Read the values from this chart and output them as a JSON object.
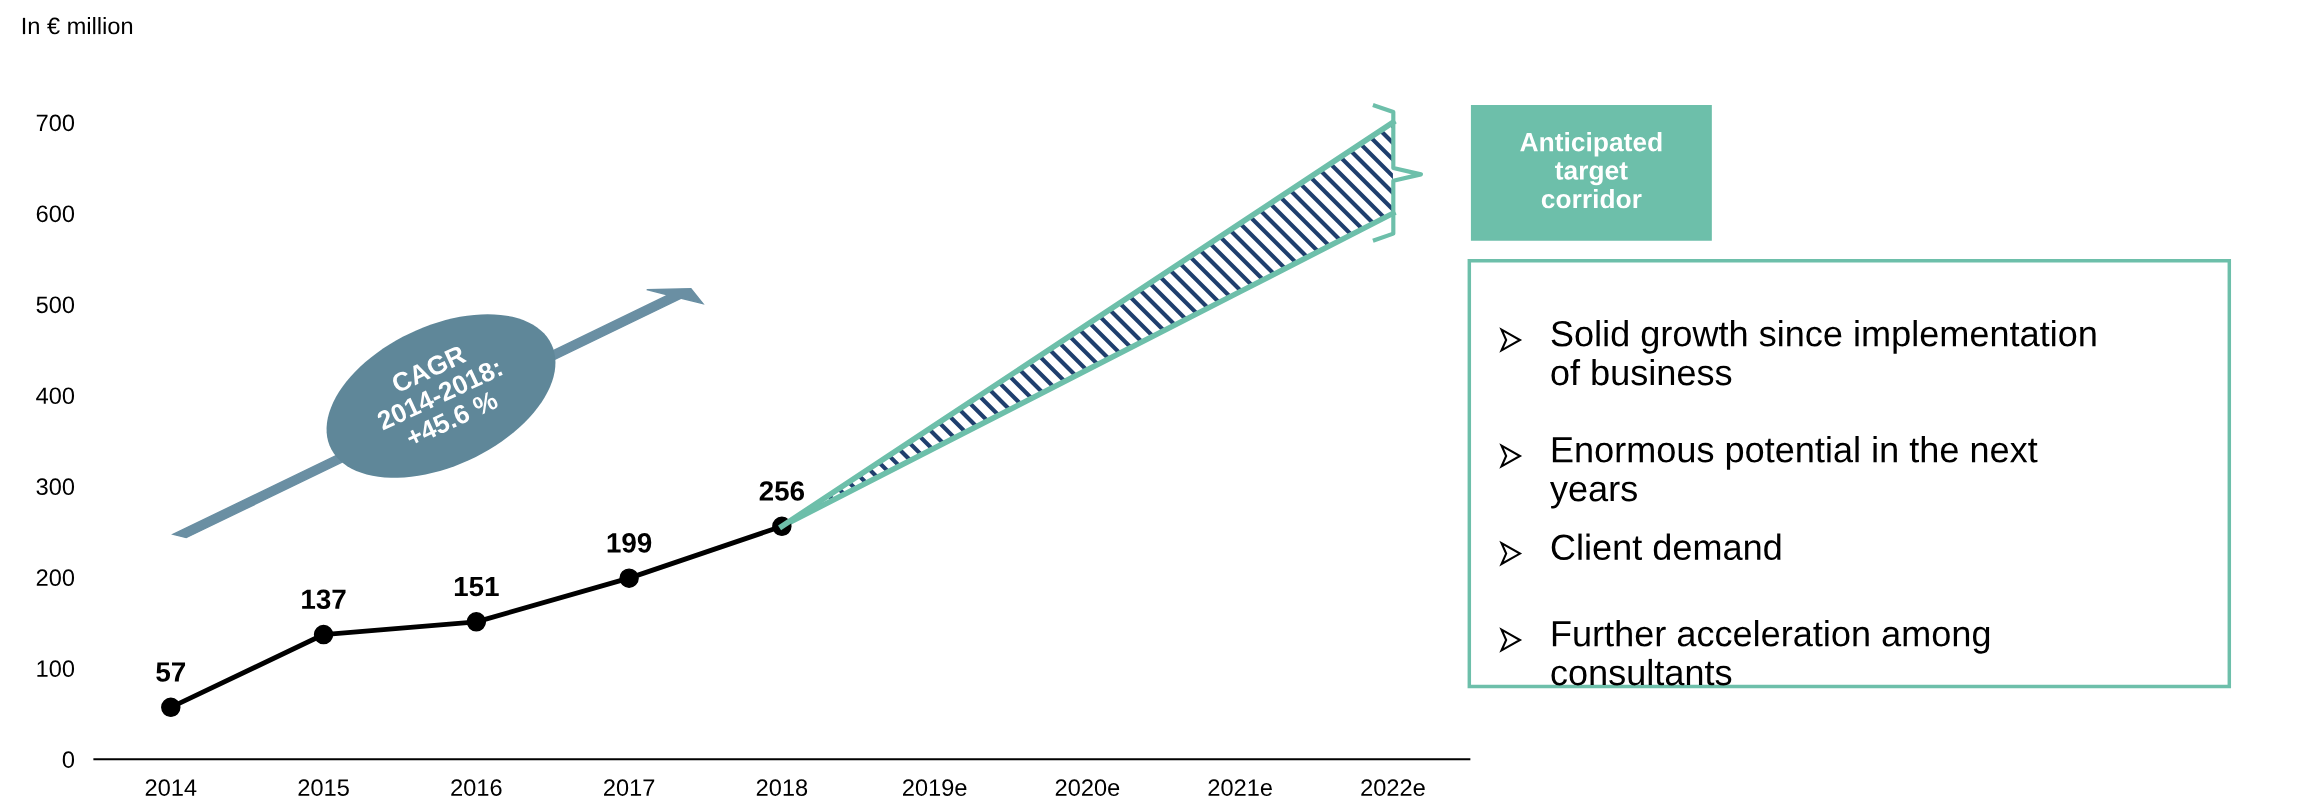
{
  "chart_data": {
    "type": "line",
    "ylabel": "In € million",
    "categories": [
      "2014",
      "2015",
      "2016",
      "2017",
      "2018",
      "2019e",
      "2020e",
      "2021e",
      "2022e"
    ],
    "series": [
      {
        "color": "#000000",
        "values": [
          57,
          137,
          151,
          199,
          256,
          null,
          null,
          null,
          null
        ],
        "marker": "circle",
        "data_labels": true
      },
      {
        "type": "line",
        "color": "#6dbfaa",
        "values": [
          null,
          null,
          null,
          null,
          256,
          367,
          478,
          589,
          700
        ],
        "lower": [
          null,
          null,
          null,
          null,
          256,
          342,
          428,
          514,
          600
        ],
        "upper": [
          null,
          null,
          null,
          null,
          256,
          367,
          478,
          589,
          700
        ]
      }
    ],
    "ylim": [
      0,
      700
    ],
    "yticks": [
      0,
      100,
      200,
      300,
      400,
      500,
      600,
      700
    ],
    "grid": false,
    "line_style": "solid",
    "annotations": [
      "CAGR\n2014-2018:\n+45.6 %",
      "Anticipated\ntarget\ncorridor",
      "Solid growth since implementation\nof business",
      "Enormous potential in the next\nyears",
      "Client demand",
      "Further acceleration among\nconsultants"
    ]
  }
}
